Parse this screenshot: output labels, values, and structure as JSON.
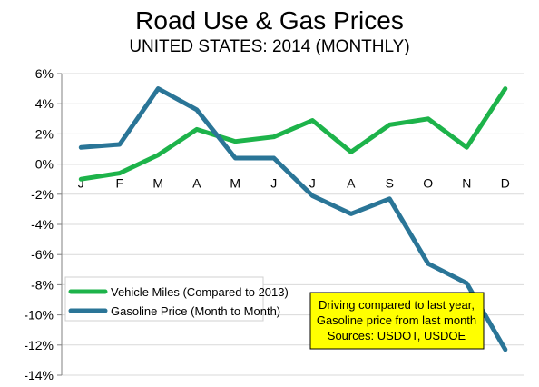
{
  "chart_data": {
    "type": "line",
    "title": "Road Use & Gas Prices",
    "subtitle": "UNITED STATES: 2014 (MONTHLY)",
    "categories": [
      "J",
      "F",
      "M",
      "A",
      "M",
      "J",
      "J",
      "A",
      "S",
      "O",
      "N",
      "D"
    ],
    "ylim": [
      -14,
      6
    ],
    "yticks": [
      6,
      4,
      2,
      0,
      -2,
      -4,
      -6,
      -8,
      -10,
      -12,
      -14
    ],
    "ytick_labels": [
      "6%",
      "4%",
      "2%",
      "0%",
      "-2%",
      "-4%",
      "-6%",
      "-8%",
      "-10%",
      "-12%",
      "-14%"
    ],
    "grid": true,
    "legend_position": "bottom-left",
    "series": [
      {
        "name": "Vehicle Miles (Compared to 2013)",
        "color": "#1db34a",
        "values": [
          -1.0,
          -0.6,
          0.6,
          2.3,
          1.5,
          1.8,
          2.9,
          0.8,
          2.6,
          3.0,
          1.1,
          5.0
        ]
      },
      {
        "name": "Gasoline Price (Month to Month)",
        "color": "#2a7597",
        "values": [
          1.1,
          1.3,
          5.0,
          3.6,
          0.4,
          0.4,
          -2.1,
          -3.3,
          -2.3,
          -6.6,
          -7.9,
          -12.3
        ]
      }
    ],
    "annotation": {
      "lines": [
        "Driving compared to last year,",
        "Gasoline price from last month",
        "Sources: USDOT, USDOE"
      ],
      "background": "#ffff00"
    }
  }
}
